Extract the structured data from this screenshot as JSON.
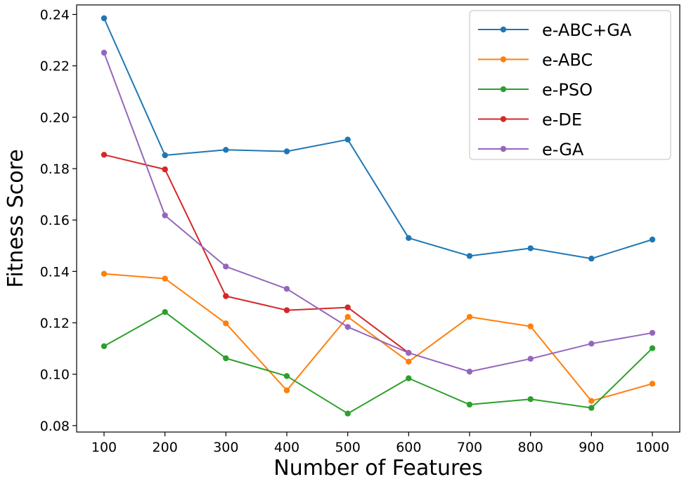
{
  "chart_data": {
    "type": "line",
    "title": "",
    "xlabel": "Number of Features",
    "ylabel": "Fitness Score",
    "x": [
      100,
      200,
      300,
      400,
      500,
      600,
      700,
      800,
      900,
      1000
    ],
    "xticks": [
      "100",
      "200",
      "300",
      "400",
      "500",
      "600",
      "700",
      "800",
      "900",
      "1000"
    ],
    "yticks": [
      0.08,
      0.1,
      0.12,
      0.14,
      0.16,
      0.18,
      0.2,
      0.22,
      0.24
    ],
    "ytick_labels": [
      "0.08",
      "0.10",
      "0.12",
      "0.14",
      "0.16",
      "0.18",
      "0.20",
      "0.22",
      "0.24"
    ],
    "xlim": [
      55,
      1045
    ],
    "ylim": [
      0.0775,
      0.2437
    ],
    "grid": false,
    "legend_position": "top-right",
    "series": [
      {
        "name": "e-ABC+GA",
        "color": "#1f77b4",
        "values": [
          0.2385,
          0.1852,
          0.1873,
          0.1867,
          0.1913,
          0.153,
          0.146,
          0.149,
          0.145,
          0.1524
        ]
      },
      {
        "name": "e-ABC",
        "color": "#ff7f0e",
        "values": [
          0.1391,
          0.1372,
          0.1198,
          0.0937,
          0.1223,
          0.1049,
          0.1223,
          0.1186,
          0.0896,
          0.0963
        ]
      },
      {
        "name": "e-PSO",
        "color": "#2ca02c",
        "values": [
          0.1109,
          0.1242,
          0.1062,
          0.0993,
          0.0847,
          0.0984,
          0.0882,
          0.0903,
          0.0869,
          0.1101
        ]
      },
      {
        "name": "e-DE",
        "color": "#d62728",
        "values": [
          0.1854,
          0.1797,
          0.1304,
          0.1249,
          0.126,
          0.1083,
          null,
          null,
          null,
          null
        ]
      },
      {
        "name": "e-GA",
        "color": "#9467bd",
        "values": [
          0.2251,
          0.1618,
          0.1419,
          0.1332,
          0.1184,
          0.1083,
          0.101,
          0.106,
          0.1119,
          0.1161
        ]
      }
    ]
  }
}
